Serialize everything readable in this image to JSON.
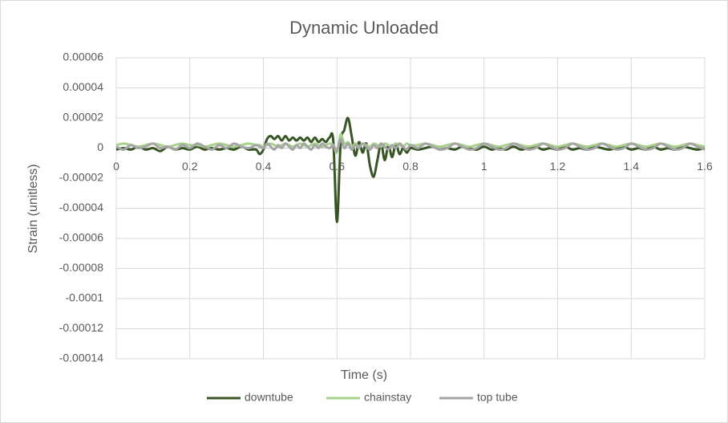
{
  "chart_data": {
    "type": "line",
    "title": "Dynamic Unloaded",
    "x_label": "Time (s)",
    "y_label": "Strain (unitless)",
    "xlim": [
      0,
      1.6
    ],
    "xticks": [
      0,
      0.2,
      0.4,
      0.6,
      0.8,
      1,
      1.2,
      1.4,
      1.6
    ],
    "ylim": [
      -0.00014,
      6e-05
    ],
    "yticks": [
      6e-05,
      4e-05,
      2e-05,
      0,
      -2e-05,
      -4e-05,
      -6e-05,
      -8e-05,
      -0.0001,
      -0.00012,
      -0.00014
    ],
    "grid": true,
    "legend": "bottom",
    "smooth": true,
    "x": [
      0,
      0.02,
      0.04,
      0.06,
      0.08,
      0.1,
      0.12,
      0.14,
      0.16,
      0.18,
      0.2,
      0.22,
      0.24,
      0.26,
      0.28,
      0.3,
      0.32,
      0.34,
      0.36,
      0.38,
      0.39,
      0.4,
      0.41,
      0.42,
      0.43,
      0.44,
      0.45,
      0.46,
      0.47,
      0.48,
      0.49,
      0.5,
      0.51,
      0.52,
      0.53,
      0.54,
      0.55,
      0.56,
      0.57,
      0.58,
      0.59,
      0.6,
      0.61,
      0.62,
      0.63,
      0.64,
      0.65,
      0.66,
      0.67,
      0.68,
      0.69,
      0.7,
      0.71,
      0.72,
      0.73,
      0.74,
      0.75,
      0.76,
      0.77,
      0.78,
      0.79,
      0.8,
      0.82,
      0.84,
      0.86,
      0.88,
      0.9,
      0.92,
      0.94,
      0.96,
      0.98,
      1,
      1.02,
      1.04,
      1.06,
      1.08,
      1.1,
      1.12,
      1.14,
      1.16,
      1.18,
      1.2,
      1.22,
      1.24,
      1.26,
      1.28,
      1.3,
      1.32,
      1.34,
      1.36,
      1.38,
      1.4,
      1.42,
      1.44,
      1.46,
      1.48,
      1.5,
      1.52,
      1.54,
      1.56,
      1.58,
      1.6
    ],
    "series": [
      {
        "name": "downtube",
        "color": "#375623",
        "values": [
          -1e-06,
          0,
          -1e-06,
          1e-06,
          -1e-06,
          0,
          -2e-06,
          1e-06,
          -1e-06,
          0,
          -1e-06,
          1e-06,
          -1e-06,
          0,
          -1e-06,
          0,
          -1e-06,
          1e-06,
          -1e-06,
          -1e-06,
          -4e-06,
          -1e-06,
          6e-06,
          8e-06,
          6e-06,
          8e-06,
          5e-06,
          8e-06,
          5e-06,
          7e-06,
          5e-06,
          7e-06,
          5e-06,
          7e-06,
          4e-06,
          7e-06,
          4e-06,
          6e-06,
          4e-06,
          7e-06,
          5e-06,
          -4.9e-05,
          3e-06,
          1.2e-05,
          2e-05,
          8e-06,
          -5e-06,
          4e-06,
          -3e-06,
          3e-06,
          -1.2e-05,
          -1.9e-05,
          -8e-06,
          3e-06,
          -8e-06,
          2e-06,
          -6e-06,
          3e-06,
          -4e-06,
          0,
          -3e-06,
          0,
          -1e-06,
          0,
          1e-06,
          -1e-06,
          0,
          -1e-06,
          1e-06,
          0,
          -1e-06,
          1e-06,
          -1e-06,
          0,
          -1e-06,
          1e-06,
          -1e-06,
          0,
          1e-06,
          -1e-06,
          0,
          -1e-06,
          1e-06,
          -1e-06,
          0,
          -1e-06,
          1e-06,
          0,
          -1e-06,
          0,
          1e-06,
          -1e-06,
          0,
          -1e-06,
          1e-06,
          -1e-06,
          0,
          -1e-06,
          1e-06,
          0,
          -1e-06,
          0
        ]
      },
      {
        "name": "chainstay",
        "color": "#a9d18e",
        "values": [
          2e-06,
          3e-06,
          2e-06,
          1e-06,
          2e-06,
          3e-06,
          2e-06,
          1e-06,
          2e-06,
          3e-06,
          2e-06,
          2e-06,
          1e-06,
          2e-06,
          3e-06,
          2e-06,
          1e-06,
          2e-06,
          3e-06,
          2e-06,
          2e-06,
          1e-06,
          2e-06,
          3e-06,
          2e-06,
          1e-06,
          2e-06,
          3e-06,
          2e-06,
          1e-06,
          2e-06,
          3e-06,
          2e-06,
          1e-06,
          2e-06,
          3e-06,
          2e-06,
          1e-06,
          2e-06,
          3e-06,
          2e-06,
          -3e-06,
          9e-06,
          3e-06,
          4e-06,
          1e-06,
          3e-06,
          1e-06,
          3e-06,
          2e-06,
          1e-06,
          3e-06,
          2e-06,
          1e-06,
          3e-06,
          2e-06,
          1e-06,
          3e-06,
          2e-06,
          1e-06,
          3e-06,
          2e-06,
          2e-06,
          3e-06,
          2e-06,
          1e-06,
          2e-06,
          3e-06,
          2e-06,
          1e-06,
          2e-06,
          3e-06,
          2e-06,
          1e-06,
          2e-06,
          3e-06,
          2e-06,
          1e-06,
          2e-06,
          3e-06,
          2e-06,
          1e-06,
          2e-06,
          3e-06,
          2e-06,
          1e-06,
          2e-06,
          3e-06,
          2e-06,
          1e-06,
          2e-06,
          3e-06,
          2e-06,
          1e-06,
          2e-06,
          3e-06,
          2e-06,
          1e-06,
          2e-06,
          3e-06,
          2e-06,
          1e-06
        ]
      },
      {
        "name": "top tube",
        "color": "#a5a5a5",
        "values": [
          1e-06,
          -1e-06,
          2e-06,
          0,
          1e-06,
          3e-06,
          0,
          1e-06,
          -1e-06,
          2e-06,
          0,
          3e-06,
          1e-06,
          -1e-06,
          2e-06,
          0,
          3e-06,
          1e-06,
          0,
          2e-06,
          1e-06,
          0,
          3e-06,
          1e-06,
          -1e-06,
          2e-06,
          0,
          3e-06,
          1e-06,
          -1e-06,
          2e-06,
          0,
          3e-06,
          1e-06,
          -1e-06,
          2e-06,
          0,
          3e-06,
          1e-06,
          0,
          2e-06,
          -2e-06,
          6e-06,
          0,
          3e-06,
          -1e-06,
          2e-06,
          0,
          3e-06,
          1e-06,
          -1e-06,
          2e-06,
          0,
          3e-06,
          1e-06,
          -1e-06,
          2e-06,
          0,
          3e-06,
          1e-06,
          -1e-06,
          2e-06,
          0,
          3e-06,
          1e-06,
          -1e-06,
          0,
          3e-06,
          1e-06,
          -1e-06,
          0,
          3e-06,
          1e-06,
          -1e-06,
          0,
          3e-06,
          1e-06,
          -1e-06,
          0,
          3e-06,
          1e-06,
          -1e-06,
          0,
          3e-06,
          1e-06,
          -1e-06,
          0,
          3e-06,
          1e-06,
          -1e-06,
          0,
          3e-06,
          1e-06,
          -1e-06,
          0,
          3e-06,
          1e-06,
          -1e-06,
          0,
          3e-06,
          1e-06,
          -1e-06
        ]
      }
    ]
  }
}
